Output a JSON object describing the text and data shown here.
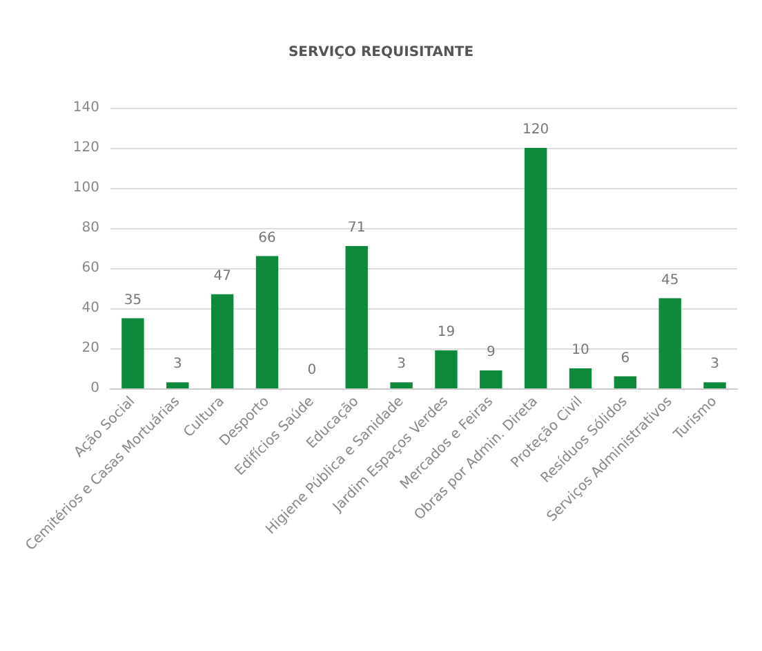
{
  "chart_data": {
    "type": "bar",
    "title": "SERVIÇO REQUISITANTE",
    "categories": [
      "Ação Social",
      "Cemitérios e Casas Mortuárias",
      "Cultura",
      "Desporto",
      "Edifícios Saúde",
      "Educação",
      "Higiene Pública e Sanidade",
      "Jardim Espaços Verdes",
      "Mercados e Feiras",
      "Obras por Admin. Direta",
      "Proteção Civil",
      "Resíduos Sólidos",
      "Serviços Administrativos",
      "Turismo"
    ],
    "values": [
      35,
      3,
      47,
      66,
      0,
      71,
      3,
      19,
      9,
      120,
      10,
      6,
      45,
      3
    ],
    "color": "#0f8a3c",
    "ylim": [
      0,
      140
    ],
    "yticks": [
      0,
      20,
      40,
      60,
      80,
      100,
      120,
      140
    ],
    "grid": "y",
    "data_labels": true
  }
}
